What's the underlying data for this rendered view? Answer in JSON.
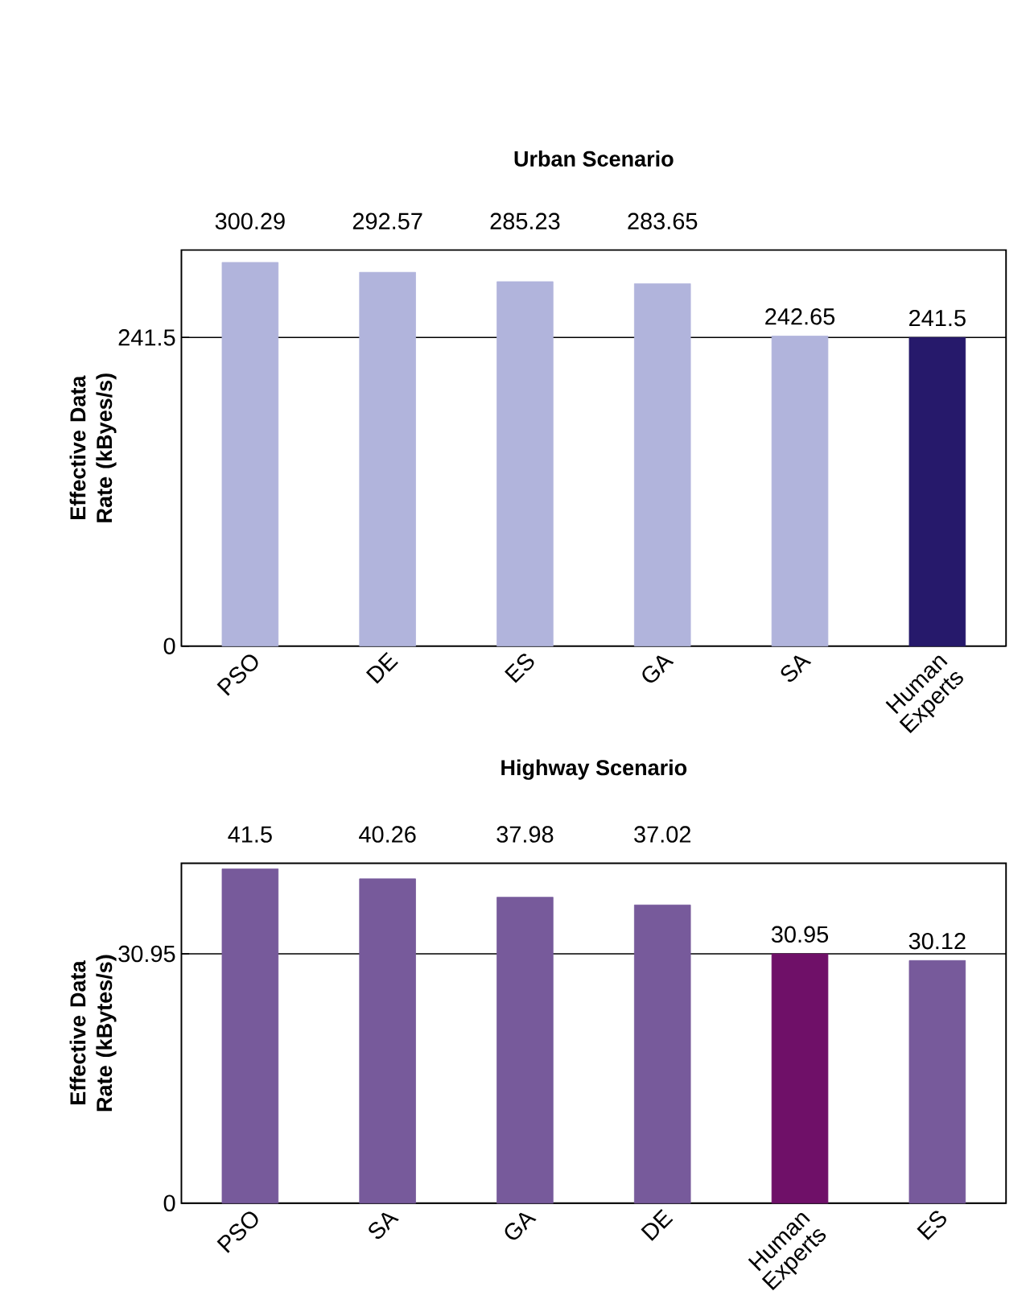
{
  "chart_data": [
    {
      "type": "bar",
      "title": "Urban Scenario",
      "ylabel": "Effective Data Rate (kByes/s)",
      "categories": [
        "PSO",
        "DE",
        "ES",
        "GA",
        "SA",
        "Human Experts"
      ],
      "values": [
        300.29,
        292.57,
        285.23,
        283.65,
        242.65,
        241.5
      ],
      "colors": [
        "#b1b4dc",
        "#b1b4dc",
        "#b1b4dc",
        "#b1b4dc",
        "#b1b4dc",
        "#26196b"
      ],
      "ylim": [
        0,
        310
      ],
      "yticks": [
        0,
        241.5
      ],
      "grid": "y",
      "data_labels": true
    },
    {
      "type": "bar",
      "title": "Highway Scenario",
      "ylabel": "Effective Data Rate (kBytes/s)",
      "categories": [
        "PSO",
        "SA",
        "GA",
        "DE",
        "Human Experts",
        "ES"
      ],
      "values": [
        41.5,
        40.26,
        37.98,
        37.02,
        30.95,
        30.12
      ],
      "colors": [
        "#775a9b",
        "#775a9b",
        "#775a9b",
        "#775a9b",
        "#6f1068",
        "#775a9b"
      ],
      "ylim": [
        0,
        42.2
      ],
      "yticks": [
        0,
        30.95
      ],
      "grid": "y",
      "data_labels": true
    }
  ]
}
